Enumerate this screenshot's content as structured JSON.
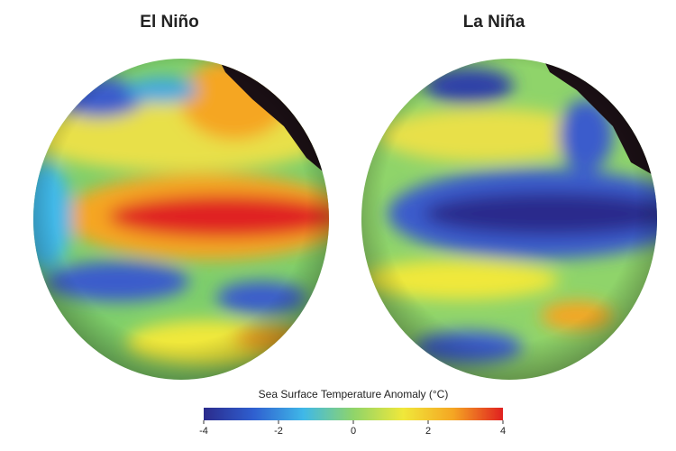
{
  "panels": [
    {
      "title": "El Niño"
    },
    {
      "title": "La Niña"
    }
  ],
  "colorbar": {
    "label": "Sea Surface Temperature Anomaly (°C)",
    "lim": [
      -4,
      4
    ],
    "ticks": [
      -4,
      -2,
      0,
      2,
      4
    ],
    "colors": [
      "#2b2b8c",
      "#2f5fd0",
      "#3fb8e8",
      "#8fd46a",
      "#f0e83a",
      "#f5a623",
      "#e02020"
    ]
  }
}
